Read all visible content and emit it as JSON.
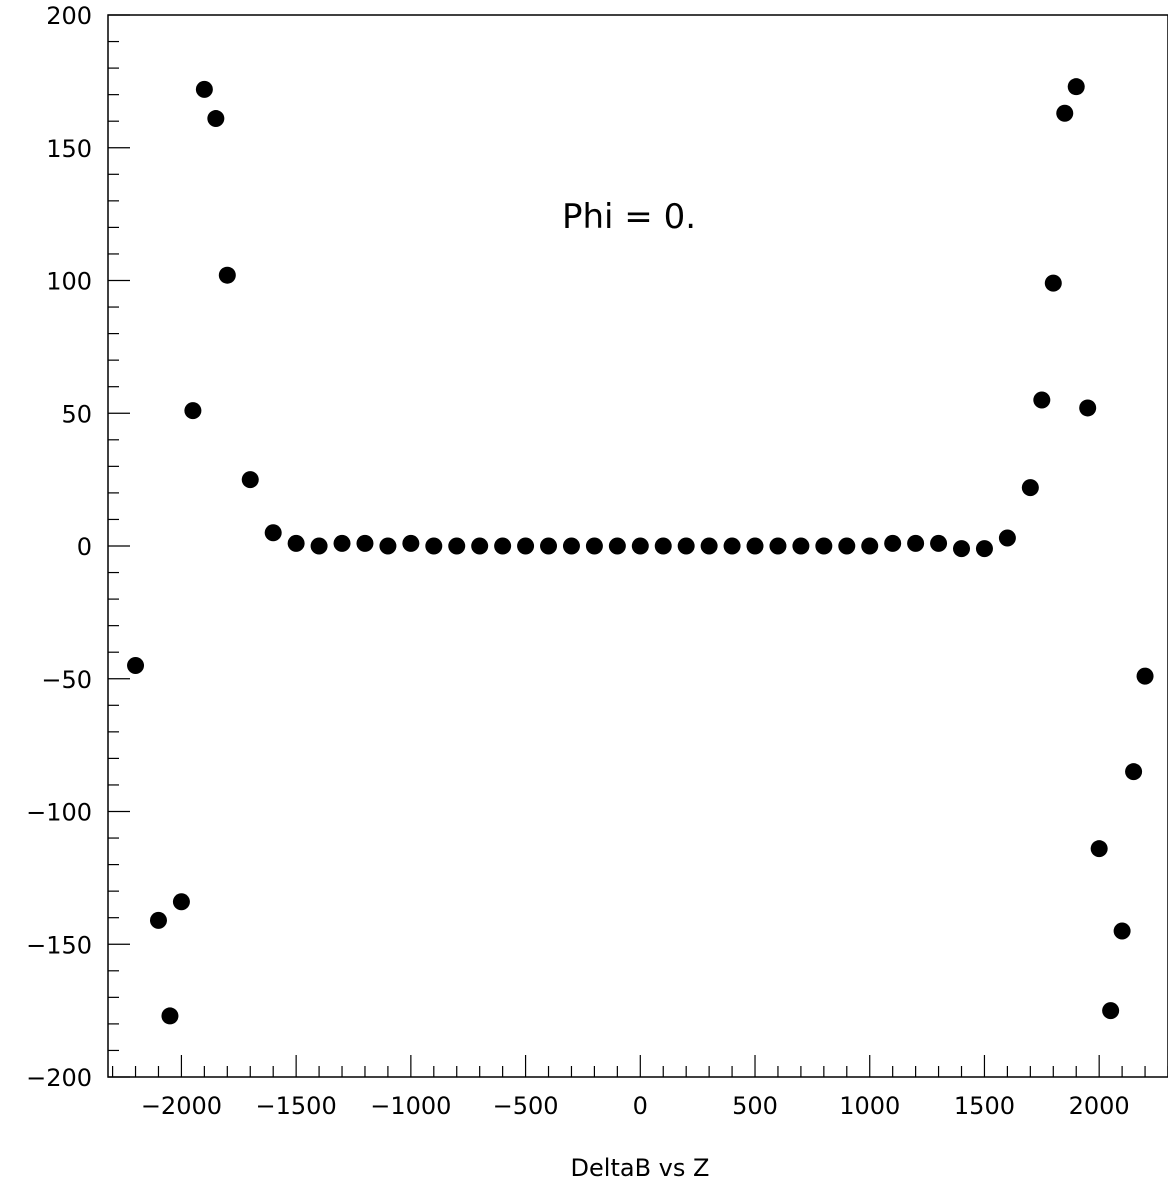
{
  "chart_data": {
    "type": "scatter",
    "title": "",
    "xlabel": "DeltaB vs Z",
    "ylabel": "",
    "annotation": "Phi = 0.",
    "xlim": [
      -2320,
      2300
    ],
    "ylim": [
      -200,
      200
    ],
    "x_ticks": [
      -2000,
      -1500,
      -1000,
      -500,
      0,
      500,
      1000,
      1500,
      2000
    ],
    "x_tick_labels": [
      "−2000",
      "−1500",
      "−1000",
      "−500",
      "0",
      "500",
      "1000",
      "1500",
      "2000"
    ],
    "y_ticks": [
      200,
      150,
      100,
      50,
      0,
      -50,
      -100,
      -150,
      -200
    ],
    "y_tick_labels": [
      "200",
      "150",
      "100",
      "50",
      "0",
      "−50",
      "−100",
      "−150",
      "−200"
    ],
    "grid": false,
    "legend": "none",
    "marker_color": "#000000",
    "series": [
      {
        "x": [
          -2200,
          -2100,
          -2050,
          -2000,
          -1950,
          -1900,
          -1850,
          -1800,
          -1700,
          -1600,
          -1500,
          -1400,
          -1300,
          -1200,
          -1100,
          -1000,
          -900,
          -800,
          -700,
          -600,
          -500,
          -400,
          -300,
          -200,
          -100,
          0,
          100,
          200,
          300,
          400,
          500,
          600,
          700,
          800,
          900,
          1000,
          1100,
          1200,
          1300,
          1400,
          1500,
          1600,
          1700,
          1750,
          1800,
          1850,
          1900,
          1950,
          2000,
          2050,
          2100,
          2150,
          2200
        ],
        "y": [
          -45,
          -141,
          -177,
          -134,
          51,
          172,
          161,
          102,
          25,
          5,
          1,
          0,
          1,
          1,
          0,
          1,
          0,
          0,
          0,
          0,
          0,
          0,
          0,
          0,
          0,
          0,
          0,
          0,
          0,
          0,
          0,
          0,
          0,
          0,
          0,
          0,
          1,
          1,
          1,
          -1,
          -1,
          3,
          22,
          55,
          99,
          163,
          173,
          52,
          -114,
          -175,
          -145,
          -85,
          -49
        ]
      }
    ]
  }
}
